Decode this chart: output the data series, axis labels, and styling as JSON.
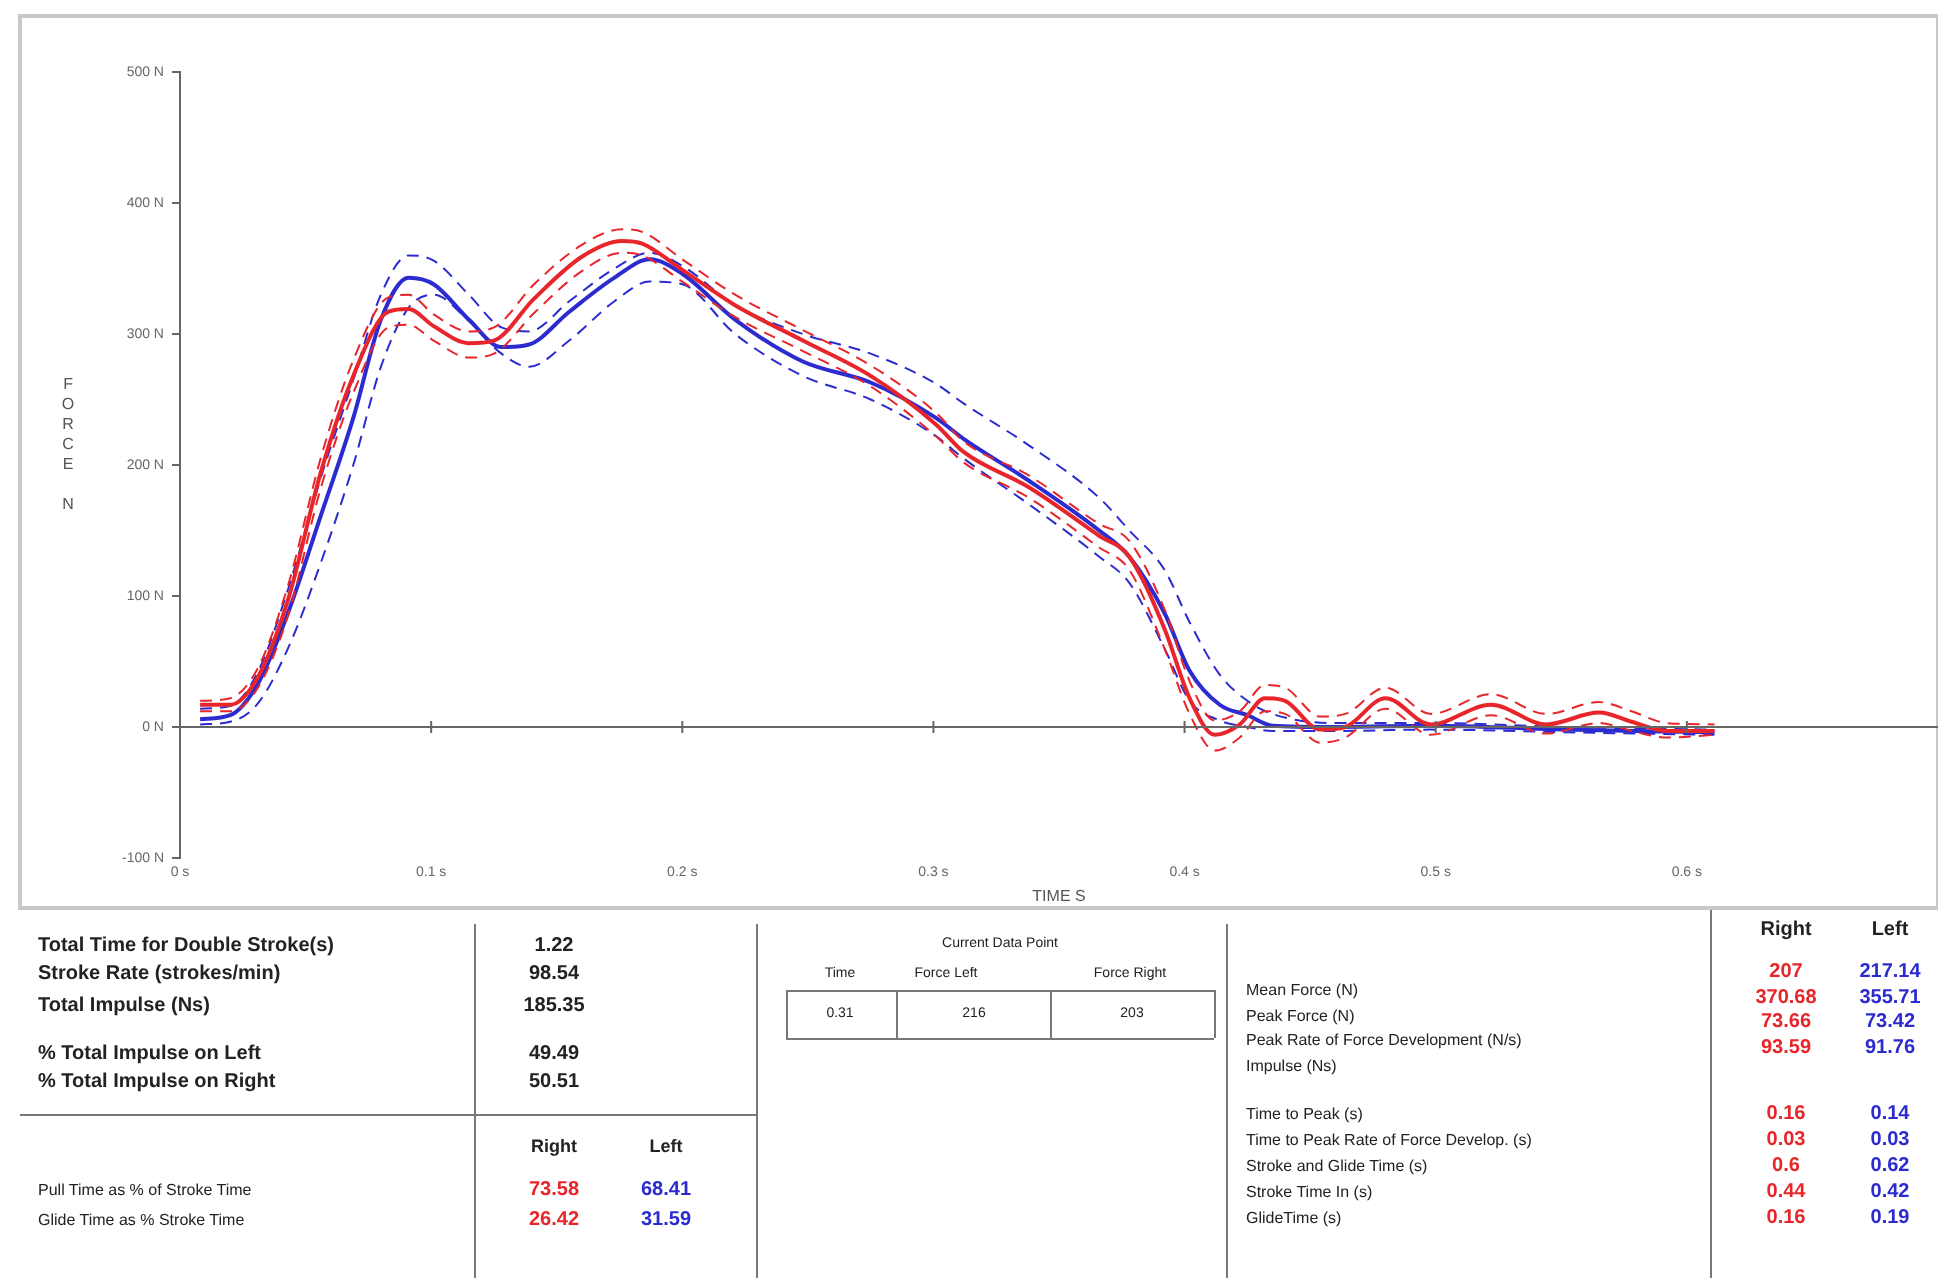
{
  "chart_data": {
    "type": "line",
    "xlabel": "TIME S",
    "ylabel": "FORCE N",
    "xlim": [
      0,
      0.7
    ],
    "ylim": [
      -100,
      500
    ],
    "xticks": [
      {
        "value": 0,
        "label": "0 s"
      },
      {
        "value": 0.1,
        "label": "0.1 s"
      },
      {
        "value": 0.2,
        "label": "0.2 s"
      },
      {
        "value": 0.3,
        "label": "0.3 s"
      },
      {
        "value": 0.4,
        "label": "0.4 s"
      },
      {
        "value": 0.5,
        "label": "0.5 s"
      },
      {
        "value": 0.6,
        "label": "0.6 s"
      }
    ],
    "yticks": [
      {
        "value": -100,
        "label": "-100 N"
      },
      {
        "value": 0,
        "label": "0 N"
      },
      {
        "value": 100,
        "label": "100 N"
      },
      {
        "value": 200,
        "label": "200 N"
      },
      {
        "value": 300,
        "label": "300 N"
      },
      {
        "value": 400,
        "label": "400 N"
      },
      {
        "value": 500,
        "label": "500 N"
      }
    ],
    "line_style": "solid",
    "legend": false,
    "series": [
      {
        "color": "#e8252a",
        "x": [
          0.008,
          0.02,
          0.031,
          0.043,
          0.056,
          0.069,
          0.083,
          0.091,
          0.101,
          0.115,
          0.125,
          0.141,
          0.16,
          0.176,
          0.184,
          0.2,
          0.221,
          0.248,
          0.275,
          0.301,
          0.312,
          0.338,
          0.366,
          0.378,
          0.392,
          0.402,
          0.412,
          0.422,
          0.432,
          0.44,
          0.454,
          0.464,
          0.48,
          0.498,
          0.522,
          0.544,
          0.565,
          0.578,
          0.592,
          0.611
        ],
        "values": [
          17,
          17,
          38,
          97,
          194,
          268,
          317,
          319,
          306,
          293,
          295,
          327,
          359,
          371,
          369,
          349,
          322,
          295,
          268,
          231,
          210,
          183,
          146,
          130,
          75,
          22,
          -6,
          2,
          22,
          20,
          -2,
          0,
          22,
          2,
          17,
          2,
          11,
          4,
          -3,
          -3
        ]
      },
      {
        "color": "#e8252a",
        "line_style": "dashed",
        "x": [
          0.008,
          0.02,
          0.031,
          0.043,
          0.056,
          0.069,
          0.083,
          0.091,
          0.101,
          0.115,
          0.125,
          0.141,
          0.16,
          0.176,
          0.184,
          0.2,
          0.221,
          0.248,
          0.275,
          0.301,
          0.312,
          0.338,
          0.366,
          0.378,
          0.392,
          0.402,
          0.412,
          0.422,
          0.432,
          0.44,
          0.454,
          0.464,
          0.48,
          0.498,
          0.522,
          0.544,
          0.565,
          0.578,
          0.592,
          0.611
        ],
        "values": [
          20,
          22,
          45,
          108,
          205,
          280,
          328,
          330,
          315,
          302,
          305,
          338,
          368,
          380,
          378,
          357,
          330,
          303,
          276,
          240,
          218,
          192,
          155,
          142,
          90,
          35,
          5,
          12,
          32,
          30,
          8,
          10,
          30,
          10,
          25,
          10,
          19,
          12,
          3,
          2
        ]
      },
      {
        "color": "#e8252a",
        "line_style": "dashed",
        "x": [
          0.008,
          0.02,
          0.031,
          0.043,
          0.056,
          0.069,
          0.083,
          0.091,
          0.101,
          0.115,
          0.125,
          0.141,
          0.16,
          0.176,
          0.184,
          0.2,
          0.221,
          0.248,
          0.275,
          0.301,
          0.312,
          0.338,
          0.366,
          0.378,
          0.392,
          0.402,
          0.412,
          0.422,
          0.432,
          0.44,
          0.454,
          0.464,
          0.48,
          0.498,
          0.522,
          0.544,
          0.565,
          0.578,
          0.592,
          0.611
        ],
        "values": [
          12,
          12,
          30,
          85,
          182,
          255,
          305,
          307,
          295,
          282,
          285,
          316,
          348,
          362,
          360,
          340,
          313,
          287,
          260,
          222,
          202,
          175,
          137,
          120,
          60,
          10,
          -18,
          -8,
          12,
          10,
          -12,
          -8,
          14,
          -6,
          9,
          -5,
          3,
          -3,
          -8,
          -6
        ]
      },
      {
        "color": "#2b2bd0",
        "x": [
          0.008,
          0.02,
          0.031,
          0.043,
          0.056,
          0.069,
          0.08,
          0.091,
          0.101,
          0.115,
          0.128,
          0.139,
          0.155,
          0.173,
          0.187,
          0.2,
          0.221,
          0.248,
          0.275,
          0.301,
          0.312,
          0.338,
          0.366,
          0.378,
          0.392,
          0.402,
          0.414,
          0.425,
          0.435,
          0.459,
          0.498,
          0.551,
          0.611
        ],
        "values": [
          6,
          9,
          33,
          87,
          161,
          236,
          311,
          343,
          338,
          311,
          290,
          292,
          317,
          343,
          357,
          346,
          311,
          279,
          263,
          236,
          220,
          188,
          150,
          130,
          87,
          43,
          17,
          9,
          1,
          0,
          1,
          -2,
          -4
        ]
      },
      {
        "color": "#2b2bd0",
        "line_style": "dashed",
        "x": [
          0.008,
          0.02,
          0.031,
          0.043,
          0.056,
          0.069,
          0.08,
          0.091,
          0.101,
          0.115,
          0.128,
          0.139,
          0.155,
          0.173,
          0.187,
          0.2,
          0.221,
          0.248,
          0.275,
          0.301,
          0.312,
          0.338,
          0.366,
          0.378,
          0.392,
          0.402,
          0.414,
          0.425,
          0.435,
          0.459,
          0.498,
          0.551,
          0.611
        ],
        "values": [
          14,
          16,
          42,
          105,
          190,
          265,
          330,
          360,
          356,
          330,
          305,
          302,
          325,
          350,
          362,
          352,
          322,
          300,
          285,
          262,
          247,
          215,
          175,
          150,
          120,
          80,
          40,
          20,
          10,
          3,
          3,
          0,
          -2
        ]
      },
      {
        "color": "#2b2bd0",
        "line_style": "dashed",
        "x": [
          0.008,
          0.02,
          0.031,
          0.043,
          0.056,
          0.069,
          0.08,
          0.091,
          0.101,
          0.115,
          0.128,
          0.139,
          0.155,
          0.173,
          0.187,
          0.2,
          0.221,
          0.248,
          0.275,
          0.301,
          0.312,
          0.338,
          0.366,
          0.378,
          0.392,
          0.402,
          0.414,
          0.425,
          0.435,
          0.459,
          0.498,
          0.551,
          0.611
        ],
        "values": [
          2,
          4,
          18,
          60,
          125,
          200,
          275,
          320,
          330,
          310,
          285,
          275,
          295,
          325,
          340,
          338,
          300,
          268,
          250,
          222,
          205,
          170,
          130,
          110,
          60,
          20,
          5,
          0,
          -3,
          -3,
          -2,
          -4,
          -6
        ]
      }
    ],
    "annotations": [
      "Total Time for Double Stroke(s)",
      "1.22",
      "Stroke Rate (strokes/min)",
      "98.54",
      "Total Impulse (Ns)",
      "185.35",
      "% Total Impulse on Left",
      "49.49",
      "% Total Impulse on Right",
      "50.51",
      "Right",
      "Left",
      "Pull Time as % of Stroke Time",
      "73.58",
      "68.41",
      "Glide Time as % Stroke Time",
      "26.42",
      "31.59",
      "Current Data Point",
      "Time",
      "Force Left",
      "Force Right",
      "0.31",
      "216",
      "203",
      "Right",
      "Left",
      "Mean Force (N)",
      "207",
      "217.14",
      "Peak Force (N)",
      "370.68",
      "355.71",
      "Peak Rate of Force Development (N/s)",
      "73.66",
      "73.42",
      "Impulse (Ns)",
      "93.59",
      "91.76",
      "Time to Peak (s)",
      "0.16",
      "0.14",
      "Time to Peak Rate of Force Develop. (s)",
      "0.03",
      "0.03",
      "Stroke and Glide Time (s)",
      "0.6",
      "0.62",
      "Stroke Time In (s)",
      "0.44",
      "0.42",
      "GlideTime (s)",
      "0.16",
      "0.19"
    ]
  }
}
